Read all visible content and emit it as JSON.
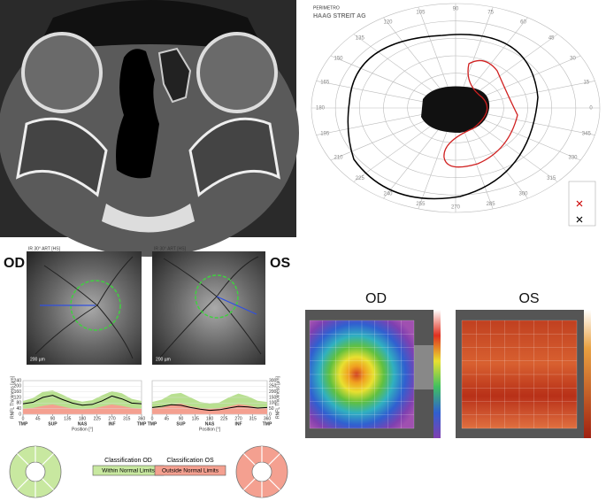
{
  "perimetry": {
    "brand_top": "PERIMETRO",
    "brand": "HAAG STREIT AG",
    "angles": [
      0,
      15,
      30,
      45,
      60,
      75,
      90,
      105,
      120,
      135,
      150,
      165,
      180,
      195,
      210,
      225,
      240,
      255,
      270,
      285,
      300,
      315,
      330,
      345
    ]
  },
  "oct": {
    "od": {
      "eye": "OD",
      "image_label": "IR 30° ART [HS]",
      "scale": "200 µm",
      "classification_title": "Classification OD",
      "classification": "Within Normal Limits"
    },
    "os": {
      "eye": "OS",
      "image_label": "IR 30° ART [HS]",
      "scale": "200 µm",
      "classification_title": "Classification OS",
      "classification": "Outside Normal Limits"
    }
  },
  "rnfl_chart": {
    "type": "line",
    "x_label": "Position [°]",
    "y_label": "RNFL Thickness [µm]",
    "xlim": [
      0,
      360
    ],
    "xticks": [
      0,
      45,
      90,
      135,
      180,
      225,
      270,
      315,
      360
    ],
    "sectors": [
      "TMP",
      "SUP",
      "NAS",
      "INF",
      "TMP"
    ],
    "x": [
      0,
      30,
      60,
      90,
      120,
      150,
      180,
      210,
      240,
      270,
      300,
      330,
      360
    ],
    "od": {
      "ylim": [
        0,
        240
      ],
      "yticks": [
        0,
        40,
        80,
        120,
        160,
        200,
        240
      ],
      "values": [
        75,
        85,
        120,
        135,
        105,
        80,
        65,
        70,
        95,
        130,
        110,
        80,
        75
      ],
      "green_upper": [
        95,
        115,
        160,
        170,
        140,
        105,
        90,
        100,
        135,
        165,
        150,
        110,
        95
      ],
      "red_upper": [
        40,
        45,
        60,
        70,
        55,
        40,
        35,
        40,
        55,
        70,
        60,
        45,
        40
      ]
    },
    "os": {
      "ylim": [
        0,
        300
      ],
      "yticks": [
        0,
        50,
        100,
        150,
        200,
        250,
        300
      ],
      "values": [
        60,
        70,
        85,
        80,
        60,
        45,
        35,
        40,
        55,
        70,
        65,
        55,
        60
      ],
      "green_upper": [
        110,
        130,
        180,
        190,
        150,
        110,
        95,
        105,
        150,
        185,
        160,
        120,
        110
      ],
      "red_upper": [
        55,
        60,
        85,
        95,
        70,
        55,
        50,
        55,
        70,
        90,
        80,
        60,
        55
      ]
    }
  },
  "maps": {
    "od": "OD",
    "os": "OS"
  }
}
